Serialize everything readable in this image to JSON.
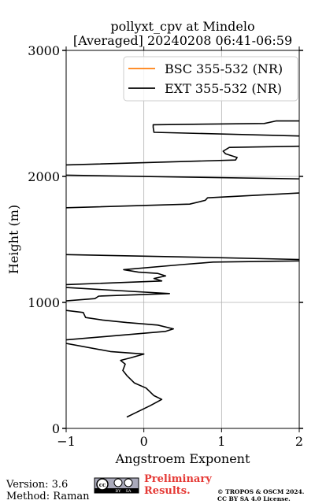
{
  "chart_data": {
    "type": "line",
    "title": [
      "pollyxt_cpv at Mindelo",
      "[Averaged] 20240208 06:41-06:59"
    ],
    "x_label": "Angstroem Exponent",
    "y_label": "Height (m)",
    "xlim": [
      -1,
      2
    ],
    "xticks": [
      {
        "value": -1,
        "label": "−1"
      },
      0,
      1,
      2
    ],
    "ylim": [
      0,
      3000
    ],
    "yticks": [
      0,
      1000,
      2000,
      3000
    ],
    "grid": true,
    "legend": "upper right",
    "series": [
      {
        "name": "BSC 355-532 (NR)",
        "color": "#ff7f0e",
        "values": [],
        "heights": []
      },
      {
        "name": "EXT 355-532 (NR)",
        "color": "#000000",
        "values": [
          2.05,
          1.7,
          1.55,
          0.12,
          0.12,
          0.13,
          2.05,
          2.05,
          1.1,
          1.02,
          1.05,
          1.2,
          1.18,
          -1.05,
          -1.05,
          2.05,
          2.05,
          0.82,
          0.79,
          0.59,
          -1.05,
          -1.05,
          0.59,
          2.05,
          2.05,
          0.89,
          0.49,
          -0.26,
          -0.07,
          0.18,
          0.28,
          0.13,
          0.23,
          -1.05,
          -1.05,
          0.33,
          -0.58,
          -0.63,
          -1.05,
          -1.05,
          -0.78,
          -0.75,
          -0.53,
          -0.22,
          0.18,
          0.38,
          0.28,
          -1.05,
          -1.05,
          -0.43,
          0.0,
          -0.17,
          -0.3,
          -0.24,
          -0.27,
          -0.22,
          -0.12,
          0.03,
          0.13,
          0.23,
          0.08,
          -0.12,
          -0.22
        ],
        "heights": [
          2440,
          2440,
          2420,
          2410,
          2390,
          2350,
          2320,
          2240,
          2230,
          2200,
          2180,
          2150,
          2130,
          2090,
          2010,
          1980,
          1870,
          1830,
          1810,
          1780,
          1750,
          1380,
          1360,
          1340,
          1330,
          1320,
          1300,
          1260,
          1240,
          1230,
          1210,
          1190,
          1170,
          1140,
          1120,
          1070,
          1050,
          1030,
          1010,
          940,
          920,
          880,
          860,
          840,
          820,
          790,
          770,
          700,
          680,
          610,
          590,
          560,
          540,
          510,
          460,
          420,
          360,
          320,
          260,
          230,
          180,
          120,
          90
        ]
      }
    ]
  },
  "footer": {
    "version": "Version: 3.6",
    "method": "Method: Raman",
    "badge": [
      "BY",
      "SA"
    ],
    "notice": "Preliminary Results.",
    "copyright": [
      "© TROPOS & OSCM 2024.",
      "CC BY SA 4.0 License."
    ]
  }
}
